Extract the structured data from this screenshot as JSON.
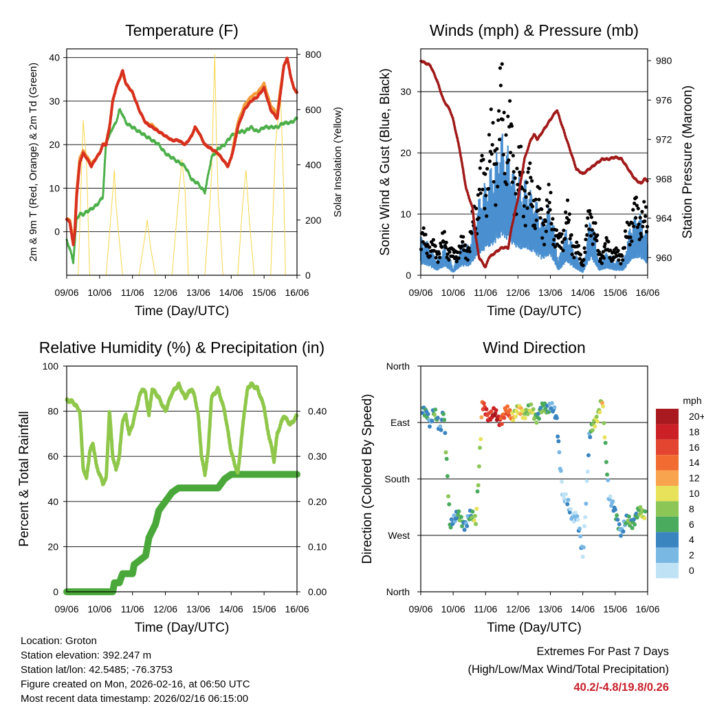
{
  "chart_data": [
    {
      "id": "temperature",
      "type": "line",
      "title": "Temperature (F)",
      "xlabel": "Time (Day/UTC)",
      "ylabel": "2m & 9m T (Red, Orange) & 2m Td (Green)",
      "y2label": "Solar Insolation (Yellow)",
      "x_ticks": [
        "09/06",
        "10/06",
        "11/06",
        "12/06",
        "13/06",
        "14/06",
        "15/06",
        "16/06"
      ],
      "xlim": [
        0,
        7
      ],
      "ylim": [
        -10,
        42
      ],
      "y_ticks": [
        0,
        10,
        20,
        30,
        40
      ],
      "y2lim": [
        0,
        820
      ],
      "y2_ticks": [
        0,
        200,
        400,
        600,
        800
      ],
      "colors": {
        "t2m": "#d7301f",
        "t9m": "#f39c3a",
        "td": "#4daf4a",
        "solar": "#f5d547"
      },
      "series": [
        {
          "name": "2m T",
          "x": [
            0,
            0.1,
            0.2,
            0.25,
            0.3,
            0.4,
            0.5,
            0.6,
            0.75,
            0.9,
            1.0,
            1.1,
            1.2,
            1.3,
            1.4,
            1.5,
            1.6,
            1.7,
            1.8,
            2.0,
            2.2,
            2.4,
            2.6,
            2.8,
            3.0,
            3.2,
            3.4,
            3.6,
            3.7,
            3.8,
            3.9,
            4.0,
            4.2,
            4.4,
            4.6,
            4.8,
            4.9,
            5.0,
            5.1,
            5.2,
            5.4,
            5.6,
            5.8,
            6.0,
            6.2,
            6.4,
            6.5,
            6.6,
            6.7,
            6.8,
            6.9,
            7.0
          ],
          "values": [
            3,
            2,
            -3,
            0,
            8,
            16,
            18,
            17,
            15,
            17,
            18,
            20,
            20,
            24,
            30,
            33,
            35,
            37,
            34,
            32,
            28,
            25,
            24,
            23,
            22,
            21,
            21,
            20,
            21,
            22,
            24,
            23,
            20,
            19,
            18,
            16,
            15,
            17,
            20,
            24,
            28,
            30,
            31,
            33,
            28,
            26,
            32,
            38,
            40,
            36,
            33,
            32
          ]
        },
        {
          "name": "9m T",
          "x": [
            0,
            0.1,
            0.2,
            0.25,
            0.3,
            0.4,
            0.5,
            0.6,
            0.75,
            0.9,
            1.0,
            1.1,
            1.2,
            1.3,
            1.4,
            1.5,
            1.6,
            1.7,
            1.8,
            2.0,
            2.2,
            2.4,
            2.6,
            2.8,
            3.0,
            3.2,
            3.4,
            3.6,
            3.7,
            3.8,
            3.9,
            4.0,
            4.2,
            4.4,
            4.6,
            4.8,
            4.9,
            5.0,
            5.1,
            5.2,
            5.4,
            5.6,
            5.8,
            6.0,
            6.2,
            6.4,
            6.5,
            6.6,
            6.7,
            6.8,
            6.9,
            7.0
          ],
          "values": [
            3,
            2.5,
            -2,
            1,
            9,
            17,
            18.5,
            17.5,
            15.5,
            17,
            18,
            20,
            20.5,
            24,
            30,
            33,
            35,
            36.5,
            34,
            32,
            28,
            25,
            24.5,
            23,
            22,
            21,
            21,
            20,
            21,
            22,
            24,
            23,
            20,
            19,
            18,
            16,
            15,
            17,
            21,
            25,
            29,
            31,
            32,
            34,
            29,
            27,
            33,
            38,
            40,
            36,
            33,
            32
          ]
        },
        {
          "name": "2m Td",
          "x": [
            0,
            0.1,
            0.2,
            0.3,
            0.4,
            0.5,
            0.7,
            0.9,
            1.0,
            1.1,
            1.2,
            1.3,
            1.4,
            1.5,
            1.6,
            1.7,
            1.8,
            2.0,
            2.2,
            2.4,
            2.6,
            2.8,
            3.0,
            3.2,
            3.4,
            3.6,
            3.8,
            4.0,
            4.1,
            4.2,
            4.4,
            4.6,
            4.8,
            5.0,
            5.2,
            5.4,
            5.6,
            5.8,
            6.0,
            6.2,
            6.4,
            6.6,
            6.8,
            7.0
          ],
          "values": [
            -2,
            -4,
            -7,
            3,
            4,
            4,
            5,
            6,
            7,
            8,
            21,
            22,
            24,
            25,
            28,
            27,
            25,
            24,
            23,
            22,
            21,
            20,
            18,
            17,
            16,
            15,
            12,
            11,
            10,
            9,
            17,
            19,
            20,
            22,
            23,
            23,
            24,
            23,
            24,
            24,
            24,
            25,
            25,
            26
          ]
        },
        {
          "name": "Solar Insolation",
          "axis": "y2",
          "x": [
            0,
            0.35,
            0.5,
            0.6,
            0.7,
            1.2,
            1.4,
            1.45,
            1.5,
            1.7,
            2.2,
            2.35,
            2.45,
            2.55,
            2.7,
            3.2,
            3.4,
            3.5,
            3.6,
            3.7,
            4.2,
            4.4,
            4.5,
            4.55,
            4.6,
            4.75,
            5.2,
            5.35,
            5.45,
            5.55,
            5.7,
            6.2,
            6.35,
            6.5,
            6.6,
            6.65,
            7.0
          ],
          "values": [
            0,
            0,
            560,
            420,
            0,
            0,
            300,
            380,
            250,
            0,
            0,
            120,
            200,
            100,
            0,
            0,
            280,
            420,
            300,
            0,
            0,
            350,
            800,
            500,
            300,
            0,
            0,
            260,
            380,
            200,
            0,
            0,
            480,
            650,
            300,
            0,
            0
          ]
        }
      ]
    },
    {
      "id": "winds",
      "type": "scatter",
      "title": "Winds (mph) & Pressure (mb)",
      "xlabel": "Time (Day/UTC)",
      "ylabel": "Sonic Wind & Gust (Blue, Black)",
      "y2label": "Station Pressure (Maroon)",
      "x_ticks": [
        "09/06",
        "10/06",
        "11/06",
        "12/06",
        "13/06",
        "14/06",
        "15/06",
        "16/06"
      ],
      "xlim": [
        0,
        7
      ],
      "ylim": [
        0,
        37
      ],
      "y_ticks": [
        0,
        10,
        20,
        30
      ],
      "y2lim": [
        958.2,
        981.2
      ],
      "y2_ticks": [
        960,
        964,
        968,
        972,
        976,
        980
      ],
      "colors": {
        "wind": "#4a90d0",
        "gust": "#000000",
        "pressure": "#a11a1a"
      },
      "series": [
        {
          "name": "Sonic Wind",
          "x": [
            0,
            0.25,
            0.5,
            0.75,
            1.0,
            1.25,
            1.5,
            1.75,
            2.0,
            2.25,
            2.5,
            2.75,
            3.0,
            3.25,
            3.5,
            3.75,
            4.0,
            4.25,
            4.5,
            4.75,
            5.0,
            5.25,
            5.5,
            5.75,
            6.0,
            6.25,
            6.5,
            6.75,
            7.0
          ],
          "values": [
            5,
            4,
            2,
            4,
            1,
            4,
            4,
            9,
            12,
            14,
            18,
            15,
            12,
            12,
            10,
            7,
            9,
            2,
            6,
            3,
            1,
            8,
            2,
            3,
            2,
            2,
            7,
            8,
            5
          ]
        },
        {
          "name": "Gust",
          "x": [
            0,
            0.25,
            0.5,
            0.75,
            1.0,
            1.25,
            1.5,
            1.75,
            2.0,
            2.25,
            2.5,
            2.75,
            3.0,
            3.25,
            3.5,
            3.75,
            4.0,
            4.25,
            4.5,
            4.75,
            5.0,
            5.25,
            5.5,
            5.75,
            6.0,
            6.25,
            6.5,
            6.75,
            7.0
          ],
          "values": [
            8,
            6,
            5,
            7,
            4,
            6,
            6,
            16,
            22,
            26,
            34,
            27,
            20,
            19,
            16,
            12,
            14,
            6,
            12,
            6,
            3,
            14,
            4,
            6,
            4,
            5,
            12,
            13,
            10
          ]
        },
        {
          "name": "Station Pressure",
          "axis": "y2",
          "x": [
            0,
            0.3,
            0.5,
            0.7,
            0.9,
            1.0,
            1.2,
            1.4,
            1.6,
            1.7,
            1.8,
            1.9,
            2.0,
            2.1,
            2.3,
            2.5,
            2.7,
            2.8,
            3.0,
            3.2,
            3.4,
            3.5,
            3.6,
            3.8,
            4.0,
            4.2,
            4.4,
            4.6,
            4.8,
            5.0,
            5.2,
            5.4,
            5.6,
            5.8,
            6.0,
            6.2,
            6.4,
            6.6,
            6.8,
            6.9,
            7.0
          ],
          "values": [
            980,
            979.5,
            978,
            976,
            975,
            974,
            971,
            967,
            965,
            962,
            960,
            959.5,
            959,
            960,
            960.5,
            961,
            961,
            963,
            966,
            970,
            972,
            972.5,
            972,
            973,
            974,
            975,
            973,
            971,
            969,
            968.5,
            969,
            969.5,
            970,
            970,
            970.2,
            970,
            969,
            968,
            967.5,
            968,
            967.8
          ]
        }
      ]
    },
    {
      "id": "humidity",
      "type": "line",
      "title": "Relative Humidity (%) & Precipitation (in)",
      "xlabel": "Time (Day/UTC)",
      "ylabel": "Percent & Total Rainfall",
      "x_ticks": [
        "09/06",
        "10/06",
        "11/06",
        "12/06",
        "13/06",
        "14/06",
        "15/06",
        "16/06"
      ],
      "xlim": [
        0,
        7
      ],
      "ylim": [
        0,
        100
      ],
      "y_ticks": [
        0,
        20,
        40,
        60,
        80,
        100
      ],
      "y2lim": [
        0,
        0.5
      ],
      "y2_ticks": [
        "0.00",
        "0.10",
        "0.20",
        "0.30",
        "0.40"
      ],
      "colors": {
        "rh": "#8fc74a",
        "precip": "#4aa83a"
      },
      "series": [
        {
          "name": "Relative Humidity",
          "x": [
            0,
            0.2,
            0.4,
            0.5,
            0.6,
            0.7,
            0.8,
            0.9,
            1.0,
            1.1,
            1.2,
            1.3,
            1.4,
            1.5,
            1.6,
            1.7,
            1.8,
            1.9,
            2.0,
            2.2,
            2.3,
            2.4,
            2.5,
            2.6,
            2.8,
            3.0,
            3.2,
            3.4,
            3.6,
            3.8,
            3.9,
            4.0,
            4.1,
            4.2,
            4.3,
            4.4,
            4.6,
            4.8,
            5.0,
            5.2,
            5.4,
            5.5,
            5.6,
            5.8,
            6.0,
            6.1,
            6.2,
            6.3,
            6.4,
            6.6,
            6.8,
            7.0
          ],
          "values": [
            85,
            84,
            80,
            55,
            50,
            62,
            66,
            56,
            52,
            48,
            50,
            80,
            60,
            54,
            60,
            76,
            78,
            70,
            74,
            86,
            90,
            88,
            78,
            90,
            86,
            80,
            88,
            92,
            86,
            90,
            86,
            78,
            60,
            52,
            62,
            86,
            90,
            80,
            62,
            52,
            80,
            90,
            92,
            90,
            82,
            72,
            66,
            58,
            70,
            78,
            74,
            78
          ]
        },
        {
          "name": "Total Precipitation",
          "axis": "y2",
          "x": [
            0,
            1.0,
            1.4,
            1.45,
            1.6,
            1.7,
            2.0,
            2.05,
            2.4,
            2.5,
            2.7,
            2.8,
            3.0,
            3.2,
            3.4,
            3.6,
            3.8,
            4.0,
            4.2,
            4.4,
            4.6,
            4.8,
            5.0,
            5.2,
            5.4,
            5.6,
            5.8,
            6.0,
            6.2,
            6.4,
            6.6,
            6.8,
            7.0
          ],
          "values": [
            0,
            0,
            0,
            0.02,
            0.02,
            0.04,
            0.04,
            0.06,
            0.08,
            0.12,
            0.15,
            0.18,
            0.2,
            0.22,
            0.23,
            0.23,
            0.23,
            0.23,
            0.23,
            0.23,
            0.23,
            0.25,
            0.26,
            0.26,
            0.26,
            0.26,
            0.26,
            0.26,
            0.26,
            0.26,
            0.26,
            0.26,
            0.26
          ]
        }
      ]
    },
    {
      "id": "direction",
      "type": "scatter",
      "title": "Wind Direction",
      "xlabel": "Time (Day/UTC)",
      "ylabel": "Direction (Colored By Speed)",
      "x_ticks": [
        "09/06",
        "10/06",
        "11/06",
        "12/06",
        "13/06",
        "14/06",
        "15/06",
        "16/06"
      ],
      "xlim": [
        0,
        7
      ],
      "ylim": [
        0,
        360
      ],
      "y_ticks": [
        "North",
        "West",
        "South",
        "East",
        "North"
      ],
      "legend_title": "mph",
      "legend_labels": [
        "20+",
        "18",
        "16",
        "14",
        "12",
        "10",
        "8",
        "6",
        "4",
        "2",
        "0"
      ],
      "legend_colors": [
        "#a81a1f",
        "#cb2025",
        "#e34531",
        "#f26c31",
        "#f8a34e",
        "#e8e25a",
        "#8cc657",
        "#4aaa5e",
        "#3a84c0",
        "#7ab8e4",
        "#bfe3f5"
      ],
      "series": [
        {
          "name": "Direction (deg from north)",
          "x": [
            0.1,
            0.2,
            0.3,
            0.4,
            0.5,
            0.6,
            0.7,
            0.9,
            1.0,
            1.2,
            1.4,
            1.6,
            1.7,
            1.8,
            1.9,
            2.0,
            2.2,
            2.4,
            2.6,
            2.8,
            3.0,
            3.2,
            3.4,
            3.6,
            3.8,
            4.0,
            4.2,
            4.4,
            4.6,
            4.8,
            5.0,
            5.2,
            5.4,
            5.6,
            5.8,
            6.0,
            6.2,
            6.4,
            6.6,
            6.8,
            6.9
          ],
          "values": [
            285,
            290,
            270,
            280,
            275,
            265,
            290,
            110,
            120,
            115,
            112,
            118,
            120,
            200,
            292,
            290,
            280,
            278,
            282,
            285,
            285,
            290,
            285,
            283,
            290,
            300,
            270,
            150,
            130,
            120,
            60,
            240,
            280,
            300,
            160,
            120,
            100,
            110,
            118,
            125,
            128
          ],
          "speeds": [
            4,
            5,
            3,
            6,
            4,
            3,
            7,
            5,
            4,
            6,
            4,
            5,
            9,
            8,
            14,
            16,
            19,
            18,
            15,
            12,
            10,
            9,
            8,
            7,
            6,
            4,
            3,
            1,
            1,
            2,
            1,
            3,
            9,
            10,
            2,
            4,
            3,
            5,
            6,
            7,
            8
          ]
        }
      ]
    }
  ],
  "info": {
    "location": "Location: Groton",
    "elevation": "Station elevation: 392.247 m",
    "latlon": "Station lat/lon: 42.5485; -76.3753",
    "created": "Figure created on Mon, 2026-02-16, at 06:50 UTC",
    "timestamp": "Most recent data timestamp: 2026/02/16 06:15:00"
  },
  "extremes": {
    "title": "Extremes For Past 7 Days",
    "subtitle": "(High/Low/Max Wind/Total Precipitation)",
    "values": "40.2/-4.8/19.8/0.26"
  }
}
